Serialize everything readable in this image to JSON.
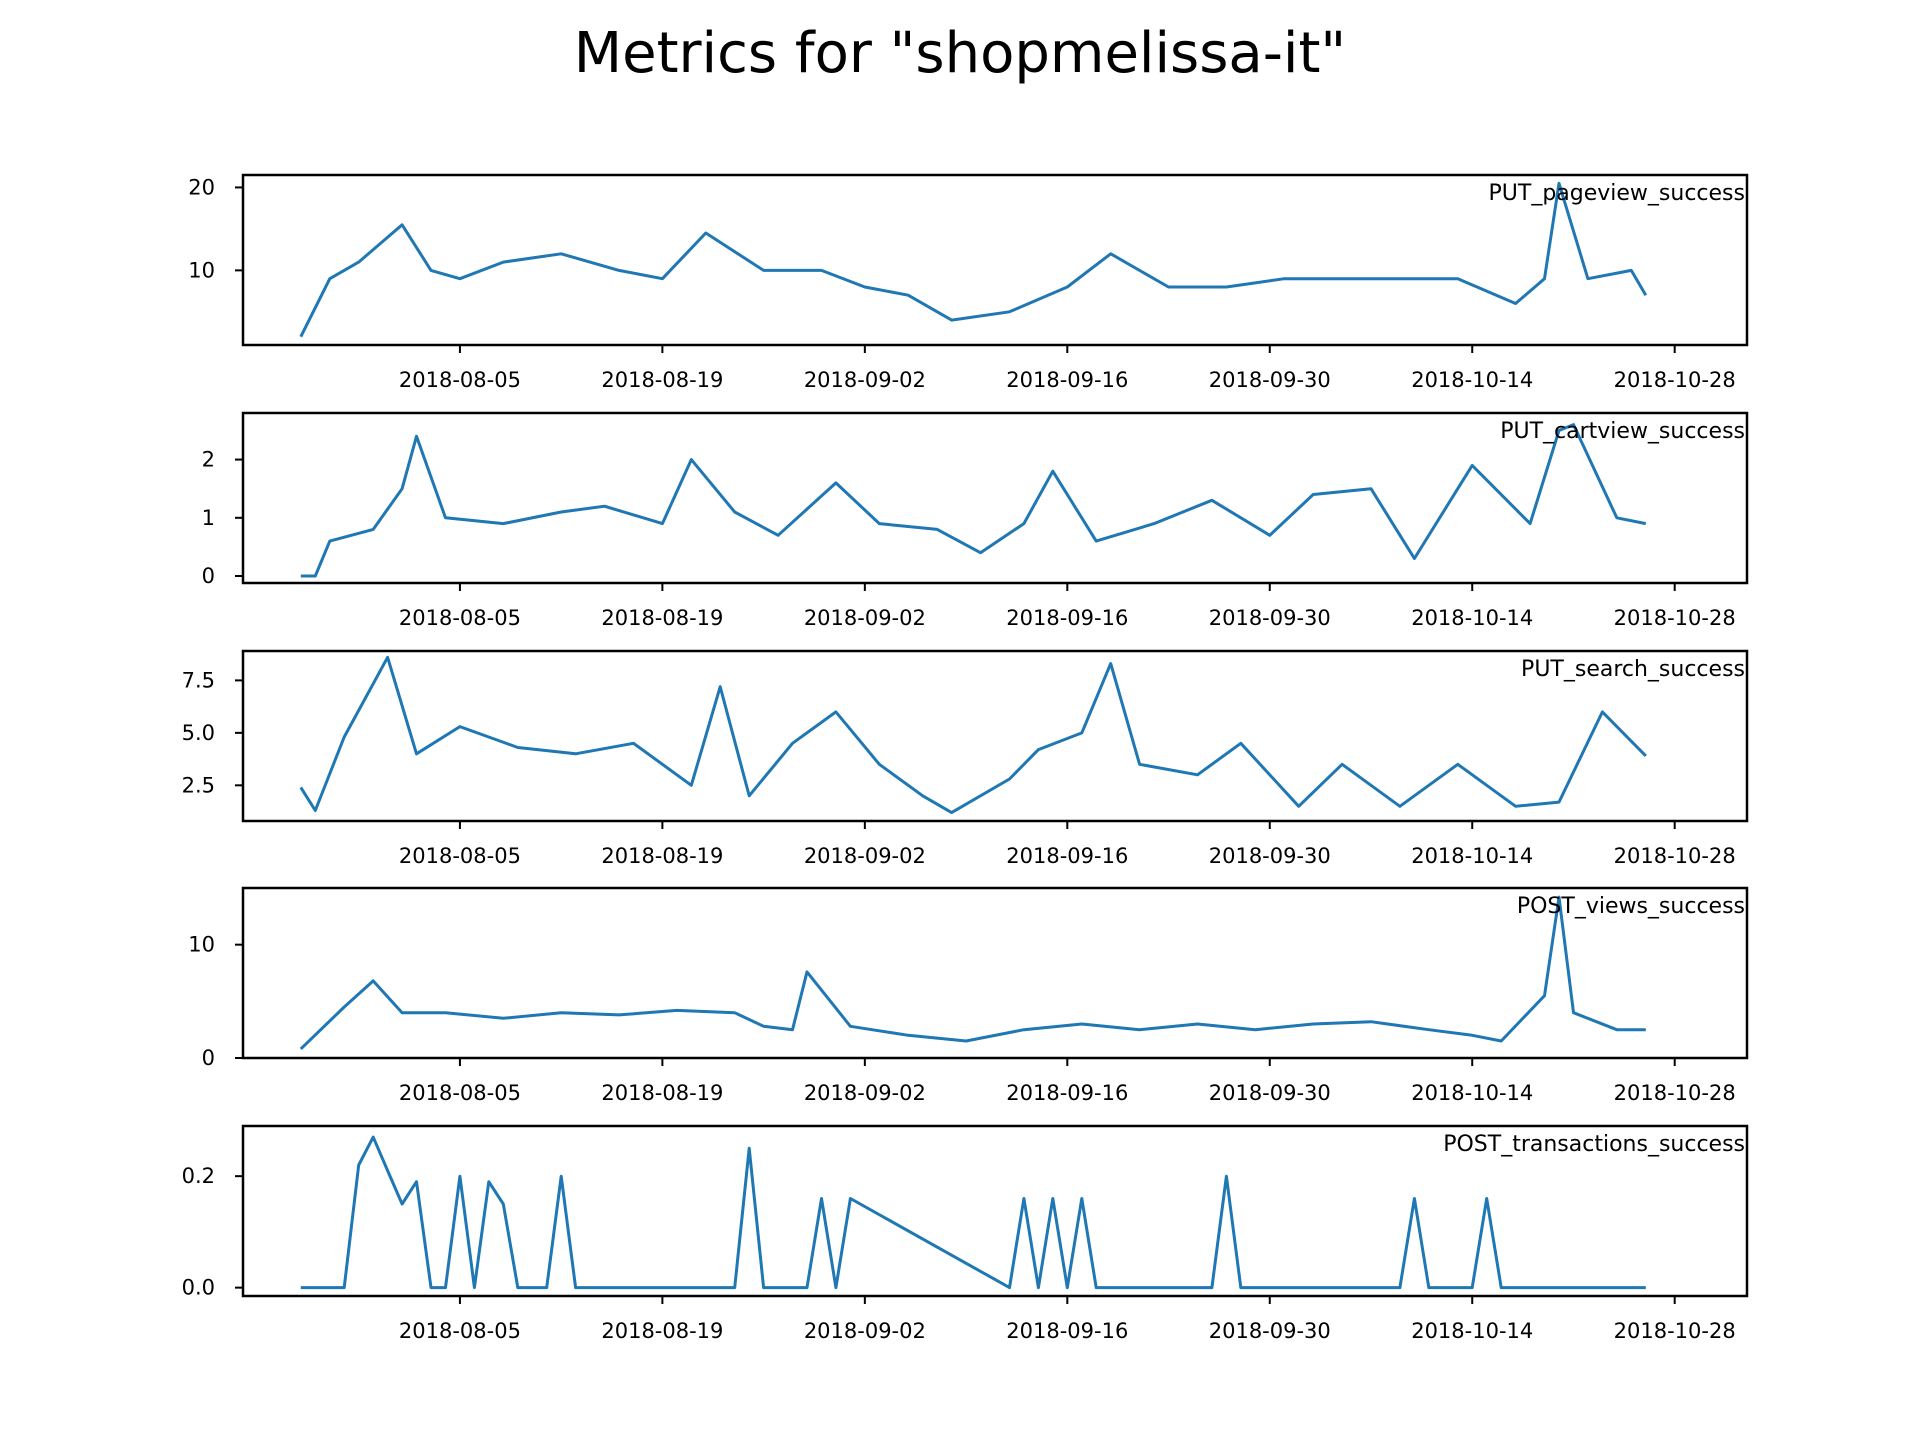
{
  "figure": {
    "title": "Metrics for \"shopmelissa-it\""
  },
  "colors": {
    "line": "#1f77b4",
    "axes": "#000000",
    "background": "#ffffff"
  },
  "chart_data": [
    {
      "type": "line",
      "title": "PUT_pageview_success",
      "x_tick_labels": [
        "2018-08-05",
        "2018-08-19",
        "2018-09-02",
        "2018-09-16",
        "2018-09-30",
        "2018-10-14",
        "2018-10-28"
      ],
      "xlim": [
        "2018-07-21",
        "2018-11-02"
      ],
      "ylim": [
        1,
        21.5
      ],
      "y_ticks": [
        10,
        20
      ],
      "y_tick_labels": [
        "10",
        "20"
      ],
      "grid": false,
      "series": [
        {
          "x": [
            "2018-07-25",
            "2018-07-27",
            "2018-07-29",
            "2018-08-01",
            "2018-08-03",
            "2018-08-05",
            "2018-08-08",
            "2018-08-12",
            "2018-08-16",
            "2018-08-19",
            "2018-08-22",
            "2018-08-26",
            "2018-08-30",
            "2018-09-02",
            "2018-09-05",
            "2018-09-08",
            "2018-09-12",
            "2018-09-16",
            "2018-09-19",
            "2018-09-23",
            "2018-09-27",
            "2018-10-01",
            "2018-10-05",
            "2018-10-09",
            "2018-10-13",
            "2018-10-17",
            "2018-10-19",
            "2018-10-20",
            "2018-10-22",
            "2018-10-25",
            "2018-10-26"
          ],
          "y": [
            2,
            9,
            11,
            15.5,
            10,
            9,
            11,
            12,
            10,
            9,
            14.5,
            10,
            10,
            8,
            7,
            4,
            5,
            8,
            12,
            8,
            8,
            9,
            9,
            9,
            9,
            6,
            9,
            20.5,
            9,
            10,
            7
          ]
        }
      ]
    },
    {
      "type": "line",
      "title": "PUT_cartview_success",
      "x_tick_labels": [
        "2018-08-05",
        "2018-08-19",
        "2018-09-02",
        "2018-09-16",
        "2018-09-30",
        "2018-10-14",
        "2018-10-28"
      ],
      "xlim": [
        "2018-07-21",
        "2018-11-02"
      ],
      "ylim": [
        -0.12,
        2.8
      ],
      "y_ticks": [
        0,
        1,
        2
      ],
      "y_tick_labels": [
        "0",
        "1",
        "2"
      ],
      "grid": false,
      "series": [
        {
          "x": [
            "2018-07-25",
            "2018-07-26",
            "2018-07-27",
            "2018-07-30",
            "2018-08-01",
            "2018-08-02",
            "2018-08-04",
            "2018-08-08",
            "2018-08-12",
            "2018-08-15",
            "2018-08-19",
            "2018-08-21",
            "2018-08-24",
            "2018-08-27",
            "2018-08-31",
            "2018-09-03",
            "2018-09-07",
            "2018-09-10",
            "2018-09-13",
            "2018-09-15",
            "2018-09-18",
            "2018-09-22",
            "2018-09-26",
            "2018-09-30",
            "2018-10-03",
            "2018-10-07",
            "2018-10-10",
            "2018-10-14",
            "2018-10-18",
            "2018-10-20",
            "2018-10-21",
            "2018-10-24",
            "2018-10-26"
          ],
          "y": [
            0,
            0,
            0.6,
            0.8,
            1.5,
            2.4,
            1.0,
            0.9,
            1.1,
            1.2,
            0.9,
            2.0,
            1.1,
            0.7,
            1.6,
            0.9,
            0.8,
            0.4,
            0.9,
            1.8,
            0.6,
            0.9,
            1.3,
            0.7,
            1.4,
            1.5,
            0.3,
            1.9,
            0.9,
            2.5,
            2.6,
            1.0,
            0.9
          ]
        }
      ]
    },
    {
      "type": "line",
      "title": "PUT_search_success",
      "x_tick_labels": [
        "2018-08-05",
        "2018-08-19",
        "2018-09-02",
        "2018-09-16",
        "2018-09-30",
        "2018-10-14",
        "2018-10-28"
      ],
      "xlim": [
        "2018-07-21",
        "2018-11-02"
      ],
      "ylim": [
        0.8,
        8.9
      ],
      "y_ticks": [
        2.5,
        5.0,
        7.5
      ],
      "y_tick_labels": [
        "2.5",
        "5.0",
        "7.5"
      ],
      "grid": false,
      "series": [
        {
          "x": [
            "2018-07-25",
            "2018-07-26",
            "2018-07-28",
            "2018-07-31",
            "2018-08-02",
            "2018-08-05",
            "2018-08-09",
            "2018-08-13",
            "2018-08-17",
            "2018-08-21",
            "2018-08-23",
            "2018-08-25",
            "2018-08-28",
            "2018-08-31",
            "2018-09-03",
            "2018-09-06",
            "2018-09-08",
            "2018-09-12",
            "2018-09-14",
            "2018-09-17",
            "2018-09-19",
            "2018-09-21",
            "2018-09-25",
            "2018-09-28",
            "2018-10-02",
            "2018-10-05",
            "2018-10-09",
            "2018-10-13",
            "2018-10-17",
            "2018-10-20",
            "2018-10-23",
            "2018-10-26"
          ],
          "y": [
            2.4,
            1.3,
            4.8,
            8.6,
            4.0,
            5.3,
            4.3,
            4.0,
            4.5,
            2.5,
            7.2,
            2.0,
            4.5,
            6.0,
            3.5,
            2.0,
            1.2,
            2.8,
            4.2,
            5.0,
            8.3,
            3.5,
            3.0,
            4.5,
            1.5,
            3.5,
            1.5,
            3.5,
            1.5,
            1.7,
            6.0,
            3.9
          ]
        }
      ]
    },
    {
      "type": "line",
      "title": "POST_views_success",
      "x_tick_labels": [
        "2018-08-05",
        "2018-08-19",
        "2018-09-02",
        "2018-09-16",
        "2018-09-30",
        "2018-10-14",
        "2018-10-28"
      ],
      "xlim": [
        "2018-07-21",
        "2018-11-02"
      ],
      "ylim": [
        0,
        15
      ],
      "y_ticks": [
        0,
        10
      ],
      "y_tick_labels": [
        "0",
        "10"
      ],
      "grid": false,
      "series": [
        {
          "x": [
            "2018-07-25",
            "2018-07-28",
            "2018-07-30",
            "2018-08-01",
            "2018-08-04",
            "2018-08-08",
            "2018-08-12",
            "2018-08-16",
            "2018-08-20",
            "2018-08-24",
            "2018-08-26",
            "2018-08-28",
            "2018-08-29",
            "2018-09-01",
            "2018-09-05",
            "2018-09-09",
            "2018-09-13",
            "2018-09-17",
            "2018-09-21",
            "2018-09-25",
            "2018-09-29",
            "2018-10-03",
            "2018-10-07",
            "2018-10-11",
            "2018-10-14",
            "2018-10-16",
            "2018-10-19",
            "2018-10-20",
            "2018-10-21",
            "2018-10-24",
            "2018-10-26"
          ],
          "y": [
            0.8,
            4.5,
            6.8,
            4.0,
            4.0,
            3.5,
            4.0,
            3.8,
            4.2,
            4.0,
            2.8,
            2.5,
            7.6,
            2.8,
            2.0,
            1.5,
            2.5,
            3.0,
            2.5,
            3.0,
            2.5,
            3.0,
            3.2,
            2.5,
            2.0,
            1.5,
            5.5,
            14.2,
            4.0,
            2.5,
            2.5
          ]
        }
      ]
    },
    {
      "type": "line",
      "title": "POST_transactions_success",
      "x_tick_labels": [
        "2018-08-05",
        "2018-08-19",
        "2018-09-02",
        "2018-09-16",
        "2018-09-30",
        "2018-10-14",
        "2018-10-28"
      ],
      "xlim": [
        "2018-07-21",
        "2018-11-02"
      ],
      "ylim": [
        -0.015,
        0.29
      ],
      "y_ticks": [
        0.0,
        0.2
      ],
      "y_tick_labels": [
        "0.0",
        "0.2"
      ],
      "grid": false,
      "series": [
        {
          "x": [
            "2018-07-25",
            "2018-07-28",
            "2018-07-29",
            "2018-07-30",
            "2018-07-31",
            "2018-08-01",
            "2018-08-02",
            "2018-08-03",
            "2018-08-04",
            "2018-08-05",
            "2018-08-06",
            "2018-08-07",
            "2018-08-08",
            "2018-08-09",
            "2018-08-11",
            "2018-08-12",
            "2018-08-13",
            "2018-08-24",
            "2018-08-25",
            "2018-08-26",
            "2018-08-29",
            "2018-08-30",
            "2018-08-31",
            "2018-09-01",
            "2018-09-12",
            "2018-09-13",
            "2018-09-14",
            "2018-09-15",
            "2018-09-16",
            "2018-09-17",
            "2018-09-18",
            "2018-09-26",
            "2018-09-27",
            "2018-09-28",
            "2018-10-09",
            "2018-10-10",
            "2018-10-11",
            "2018-10-14",
            "2018-10-15",
            "2018-10-16",
            "2018-10-26"
          ],
          "y": [
            0,
            0,
            0.22,
            0.27,
            0.21,
            0.15,
            0.19,
            0,
            0,
            0.2,
            0,
            0.19,
            0.15,
            0,
            0,
            0.2,
            0,
            0,
            0.25,
            0,
            0,
            0.16,
            0,
            0.16,
            0,
            0.16,
            0,
            0.16,
            0,
            0.16,
            0,
            0,
            0.2,
            0,
            0,
            0.16,
            0,
            0,
            0.16,
            0,
            0
          ]
        }
      ]
    }
  ]
}
